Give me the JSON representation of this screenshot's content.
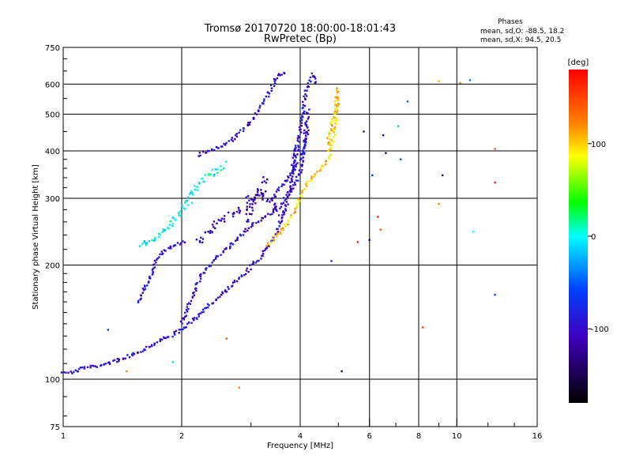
{
  "chart_data": {
    "type": "scatter",
    "title": "Tromsø 20170720 18:00:00-18:01:43",
    "subtitle": "RwPretec (Bp)",
    "xlabel": "Frequency [MHz]",
    "ylabel": "Stationary phase Virtual Height [km]",
    "x_scale": "log",
    "y_scale": "log",
    "xlim": [
      1,
      16
    ],
    "ylim": [
      75,
      750
    ],
    "x_ticks": [
      1,
      2,
      4,
      6,
      8,
      10,
      16
    ],
    "x_tick_labels": [
      "1",
      "2",
      "4",
      "6",
      "8",
      "10",
      "16"
    ],
    "x_grid_lines": [
      2,
      4,
      6,
      8,
      10
    ],
    "x_minor_ticks": [
      3,
      5,
      7,
      9,
      12,
      14
    ],
    "y_ticks": [
      75,
      100,
      200,
      300,
      400,
      500,
      600,
      750
    ],
    "y_tick_labels": [
      "75",
      "100",
      "200",
      "300",
      "400",
      "500",
      "600",
      "750"
    ],
    "y_grid_lines": [
      100,
      200,
      300,
      400,
      500,
      600
    ],
    "y_minor_ticks": [
      80,
      90,
      110,
      120,
      130,
      140,
      150,
      160,
      170,
      180,
      190,
      220,
      240,
      260,
      280,
      320,
      340,
      360,
      380,
      450,
      550,
      650,
      700
    ],
    "grid": true,
    "phase_info": {
      "title": "Phases",
      "line_o": "mean, sd,O: -88.5, 18.2",
      "line_x": "mean, sd,X:  94.5, 20.5"
    },
    "colorbar": {
      "label": "[deg]",
      "range": [
        -180,
        180
      ],
      "ticks": [
        100,
        0,
        -100
      ],
      "tick_labels": [
        "100",
        "0",
        "-100"
      ]
    },
    "series": [
      {
        "mode": "O",
        "phase_deg": -100,
        "color": "#1a3cff",
        "segments": [
          {
            "x": [
              1.0,
              1.05,
              1.12,
              1.2,
              1.3,
              1.4,
              1.5,
              1.6,
              1.7,
              1.8,
              1.9,
              2.0,
              2.1,
              2.2,
              2.3,
              2.45,
              2.6,
              2.8,
              3.0,
              3.2,
              3.4,
              3.55,
              3.7,
              3.8,
              3.9
            ],
            "y": [
              105,
              104,
              107,
              108,
              110,
              113,
              116,
              120,
              124,
              128,
              131,
              135,
              140,
              147,
              155,
              162,
              172,
              185,
              198,
              212,
              232,
              258,
              290,
              340,
              420
            ]
          },
          {
            "x": [
              2.0,
              2.1,
              2.2,
              2.3,
              2.45,
              2.6,
              2.8,
              3.0,
              3.2,
              3.4,
              3.6,
              3.8,
              4.0,
              4.1,
              4.2
            ],
            "y": [
              140,
              160,
              180,
              195,
              210,
              220,
              235,
              255,
              265,
              275,
              290,
              315,
              350,
              420,
              520
            ]
          },
          {
            "x": [
              1.55,
              1.62,
              1.68,
              1.72,
              1.78,
              1.85,
              1.95,
              2.05
            ],
            "y": [
              160,
              175,
              190,
              205,
              215,
              222,
              228,
              232
            ]
          },
          {
            "x": [
              2.2,
              2.35,
              2.5,
              2.7,
              2.9,
              3.1,
              3.3,
              3.5,
              3.7
            ],
            "y": [
              390,
              400,
              410,
              430,
              460,
              500,
              560,
              630,
              645
            ]
          },
          {
            "x": [
              3.85,
              3.95,
              4.05,
              4.15,
              4.3,
              4.4
            ],
            "y": [
              350,
              420,
              500,
              580,
              640,
              600
            ]
          },
          {
            "x": [
              3.4,
              3.55,
              3.7,
              3.85,
              4.0,
              4.1,
              4.2
            ],
            "y": [
              300,
              320,
              340,
              355,
              380,
              420,
              460
            ]
          }
        ]
      },
      {
        "mode": "O-diffuse",
        "phase_deg": -110,
        "color": "#3a20cc",
        "segments": [
          {
            "x": [
              2.2,
              2.4,
              2.6,
              2.8,
              3.0,
              3.2,
              3.4,
              3.6
            ],
            "y": [
              230,
              250,
              270,
              280,
              300,
              310,
              290,
              270
            ]
          },
          {
            "x": [
              2.9,
              3.0,
              3.1,
              3.2,
              3.3
            ],
            "y": [
              260,
              280,
              300,
              320,
              340
            ]
          }
        ]
      },
      {
        "mode": "X",
        "phase_deg": 100,
        "color": "#ffd000",
        "segments": [
          {
            "x": [
              3.3,
              3.4,
              3.5,
              3.6,
              3.7,
              3.8,
              3.9,
              4.0,
              4.1,
              4.2,
              4.3,
              4.4,
              4.55,
              4.7,
              4.85,
              5.0
            ],
            "y": [
              225,
              232,
              240,
              248,
              258,
              268,
              285,
              300,
              318,
              330,
              340,
              348,
              358,
              380,
              430,
              560
            ]
          },
          {
            "x": [
              4.7,
              4.8,
              4.9,
              5.0
            ],
            "y": [
              420,
              470,
              520,
              590
            ]
          }
        ]
      },
      {
        "mode": "scattered",
        "phase_deg": 0,
        "color": "#00b0ff",
        "segments": [
          {
            "x": [
              1.55,
              1.6,
              1.7,
              1.8,
              1.9,
              2.0,
              2.1,
              2.2,
              2.4,
              2.6
            ],
            "y": [
              225,
              228,
              232,
              245,
              260,
              275,
              300,
              330,
              350,
              370
            ]
          }
        ]
      }
    ],
    "outliers": [
      {
        "x": 9.0,
        "y": 610,
        "phase_deg": 110
      },
      {
        "x": 10.2,
        "y": 605,
        "phase_deg": 120
      },
      {
        "x": 10.8,
        "y": 615,
        "phase_deg": -40
      },
      {
        "x": 12.5,
        "y": 405,
        "phase_deg": 140
      },
      {
        "x": 12.5,
        "y": 330,
        "phase_deg": 170
      },
      {
        "x": 11.0,
        "y": 245,
        "phase_deg": 0
      },
      {
        "x": 12.5,
        "y": 167,
        "phase_deg": -60
      },
      {
        "x": 9.2,
        "y": 345,
        "phase_deg": -130
      },
      {
        "x": 9.0,
        "y": 290,
        "phase_deg": 120
      },
      {
        "x": 8.2,
        "y": 137,
        "phase_deg": 150
      },
      {
        "x": 7.5,
        "y": 540,
        "phase_deg": -50
      },
      {
        "x": 7.1,
        "y": 465,
        "phase_deg": -20
      },
      {
        "x": 6.5,
        "y": 440,
        "phase_deg": -120
      },
      {
        "x": 6.6,
        "y": 395,
        "phase_deg": -130
      },
      {
        "x": 7.2,
        "y": 380,
        "phase_deg": -50
      },
      {
        "x": 6.1,
        "y": 345,
        "phase_deg": -60
      },
      {
        "x": 6.3,
        "y": 268,
        "phase_deg": 170
      },
      {
        "x": 6.4,
        "y": 248,
        "phase_deg": 140
      },
      {
        "x": 5.6,
        "y": 230,
        "phase_deg": 170
      },
      {
        "x": 6.0,
        "y": 233,
        "phase_deg": -130
      },
      {
        "x": 5.1,
        "y": 105,
        "phase_deg": -140
      },
      {
        "x": 4.8,
        "y": 205,
        "phase_deg": -80
      },
      {
        "x": 5.8,
        "y": 450,
        "phase_deg": -110
      },
      {
        "x": 2.8,
        "y": 95,
        "phase_deg": 120
      },
      {
        "x": 2.6,
        "y": 128,
        "phase_deg": 140
      },
      {
        "x": 1.9,
        "y": 111,
        "phase_deg": -10
      },
      {
        "x": 1.3,
        "y": 135,
        "phase_deg": -60
      },
      {
        "x": 1.45,
        "y": 105,
        "phase_deg": 120
      }
    ]
  }
}
